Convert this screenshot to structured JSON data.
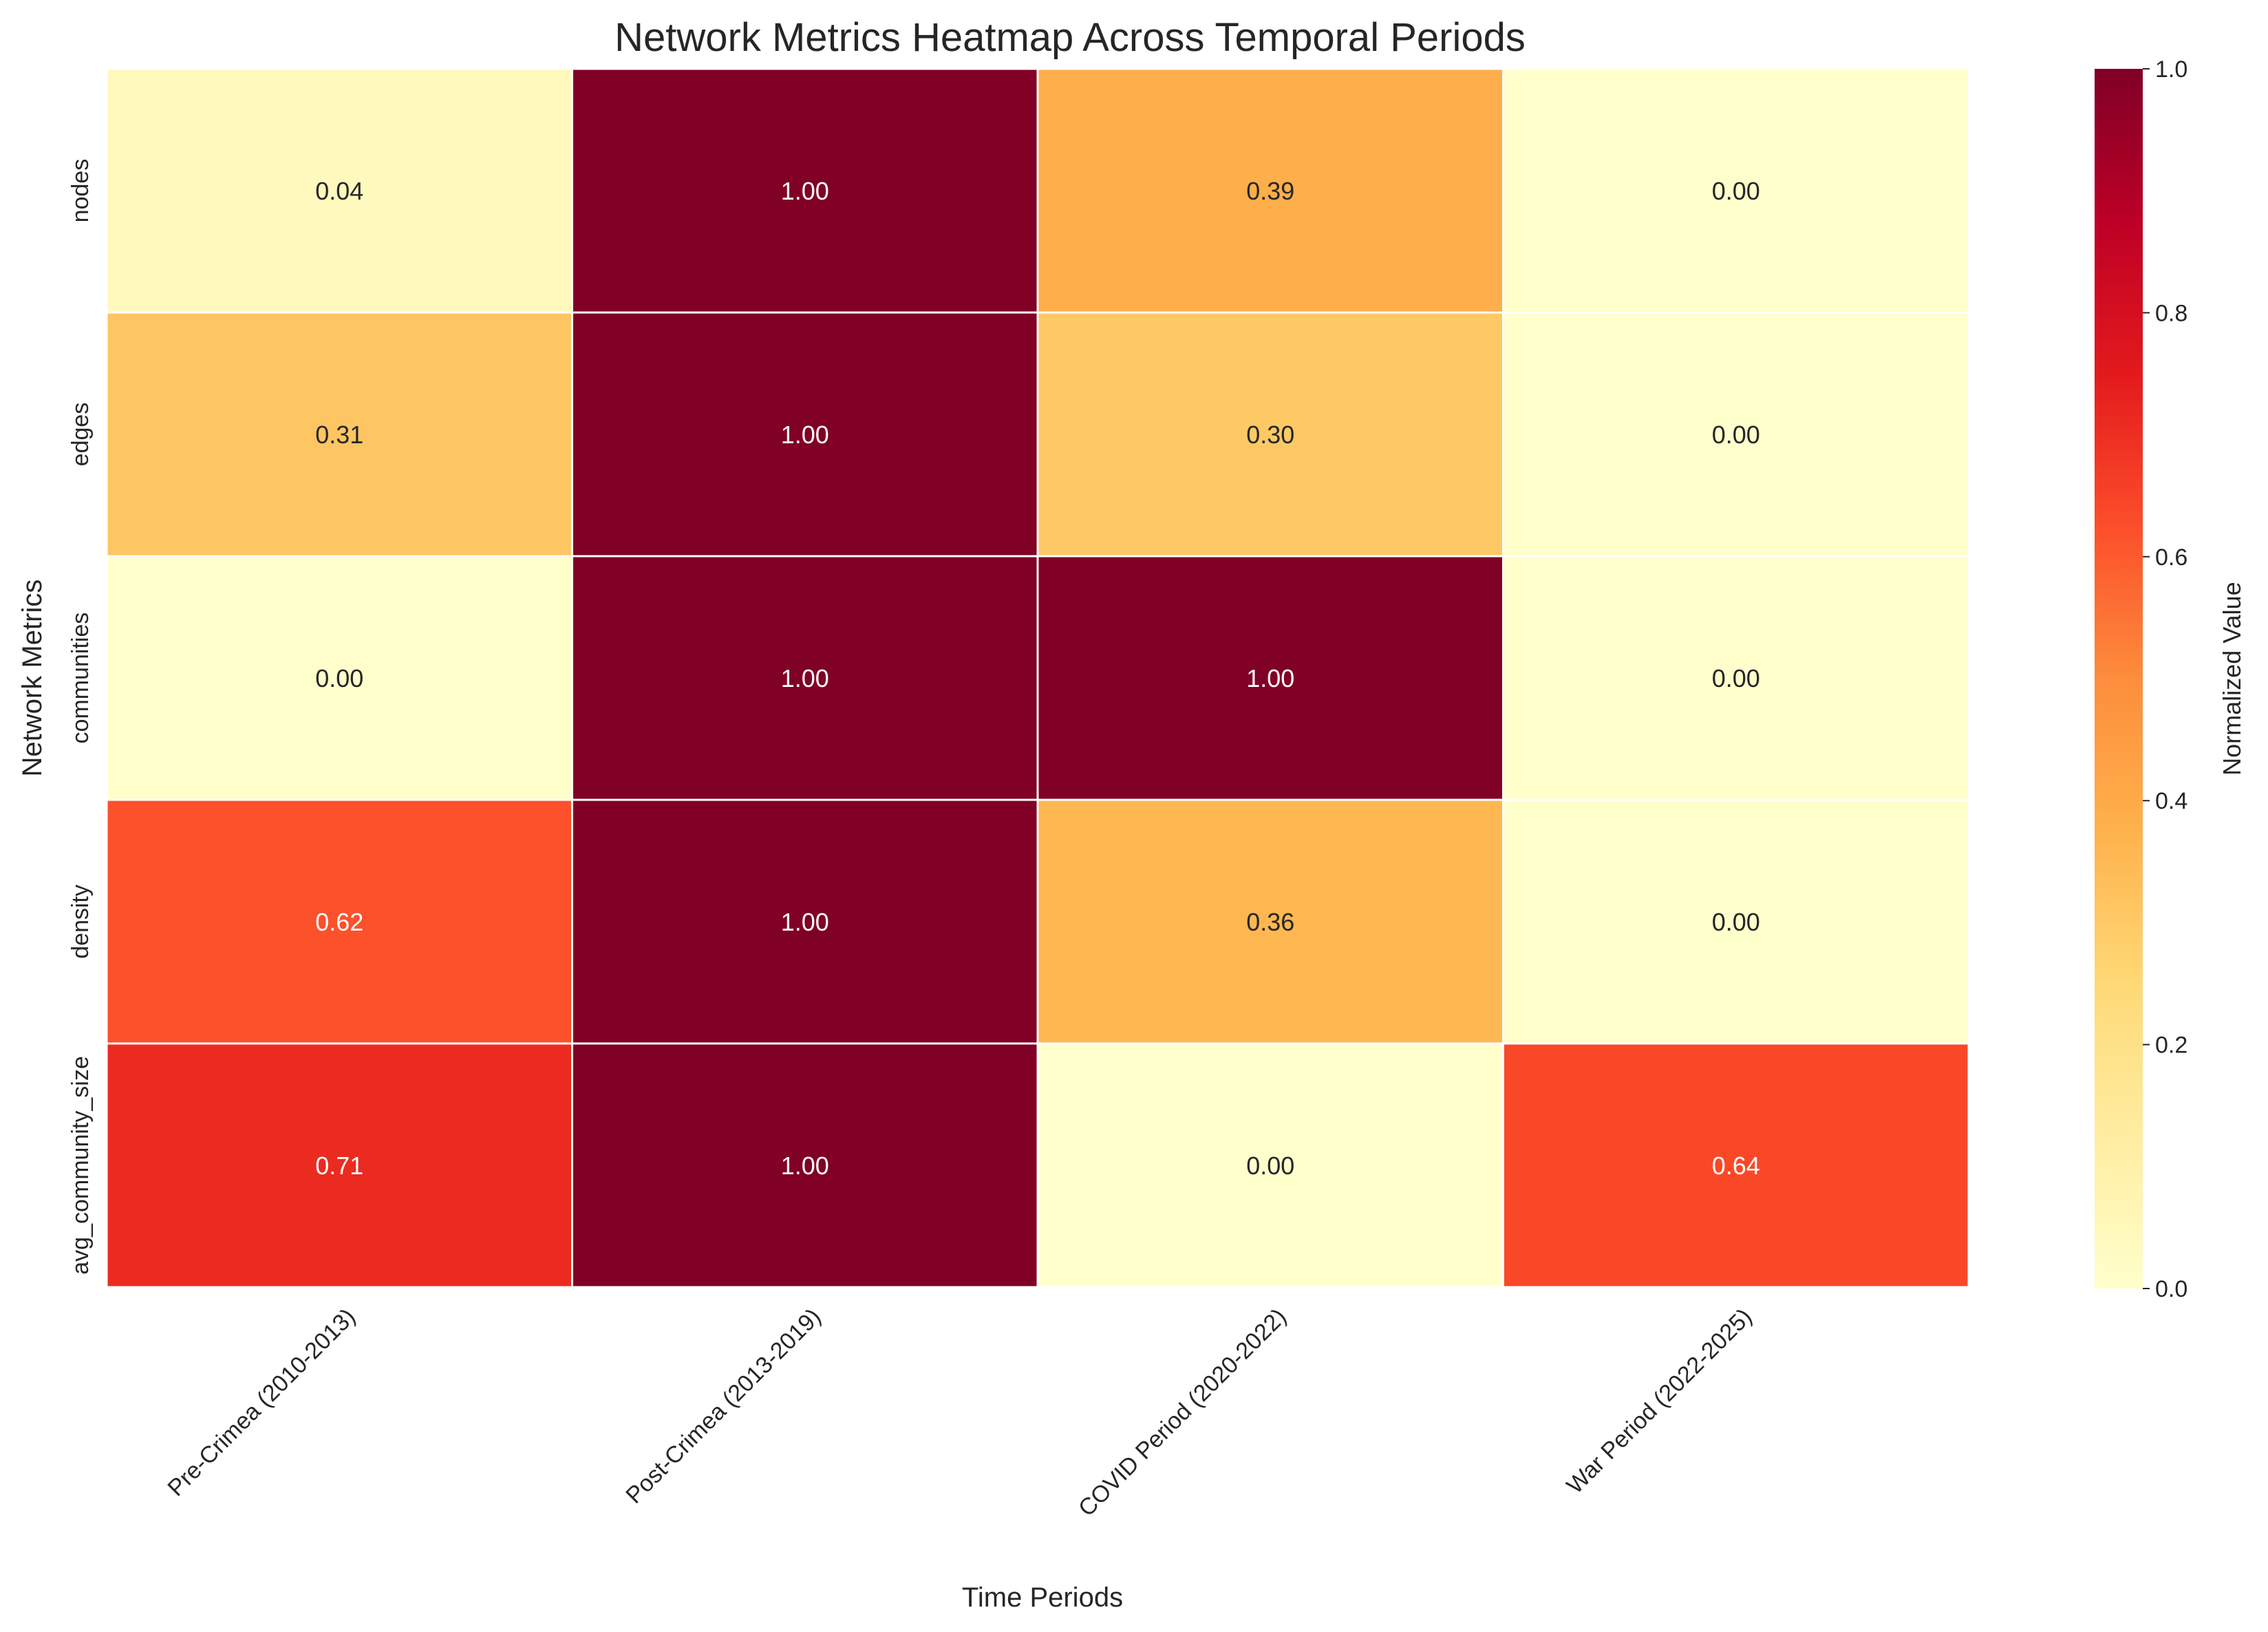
{
  "chart_data": {
    "type": "heatmap",
    "title": "Network Metrics Heatmap Across Temporal Periods",
    "xlabel": "Time Periods",
    "ylabel": "Network Metrics",
    "x_categories": [
      "Pre-Crimea (2010-2013)",
      "Post-Crimea (2013-2019)",
      "COVID Period (2020-2022)",
      "War Period (2022-2025)"
    ],
    "y_categories": [
      "nodes",
      "edges",
      "communities",
      "density",
      "avg_community_size"
    ],
    "values": [
      [
        0.04,
        1.0,
        0.39,
        0.0
      ],
      [
        0.31,
        1.0,
        0.3,
        0.0
      ],
      [
        0.0,
        1.0,
        1.0,
        0.0
      ],
      [
        0.62,
        1.0,
        0.36,
        0.0
      ],
      [
        0.71,
        1.0,
        0.0,
        0.64
      ]
    ],
    "value_format": "2 decimals",
    "colormap": "YlOrRd",
    "colorbar": {
      "label": "Normalized Value",
      "range": [
        0.0,
        1.0
      ],
      "ticks": [
        "0.0",
        "0.2",
        "0.4",
        "0.6",
        "0.8",
        "1.0"
      ]
    }
  }
}
